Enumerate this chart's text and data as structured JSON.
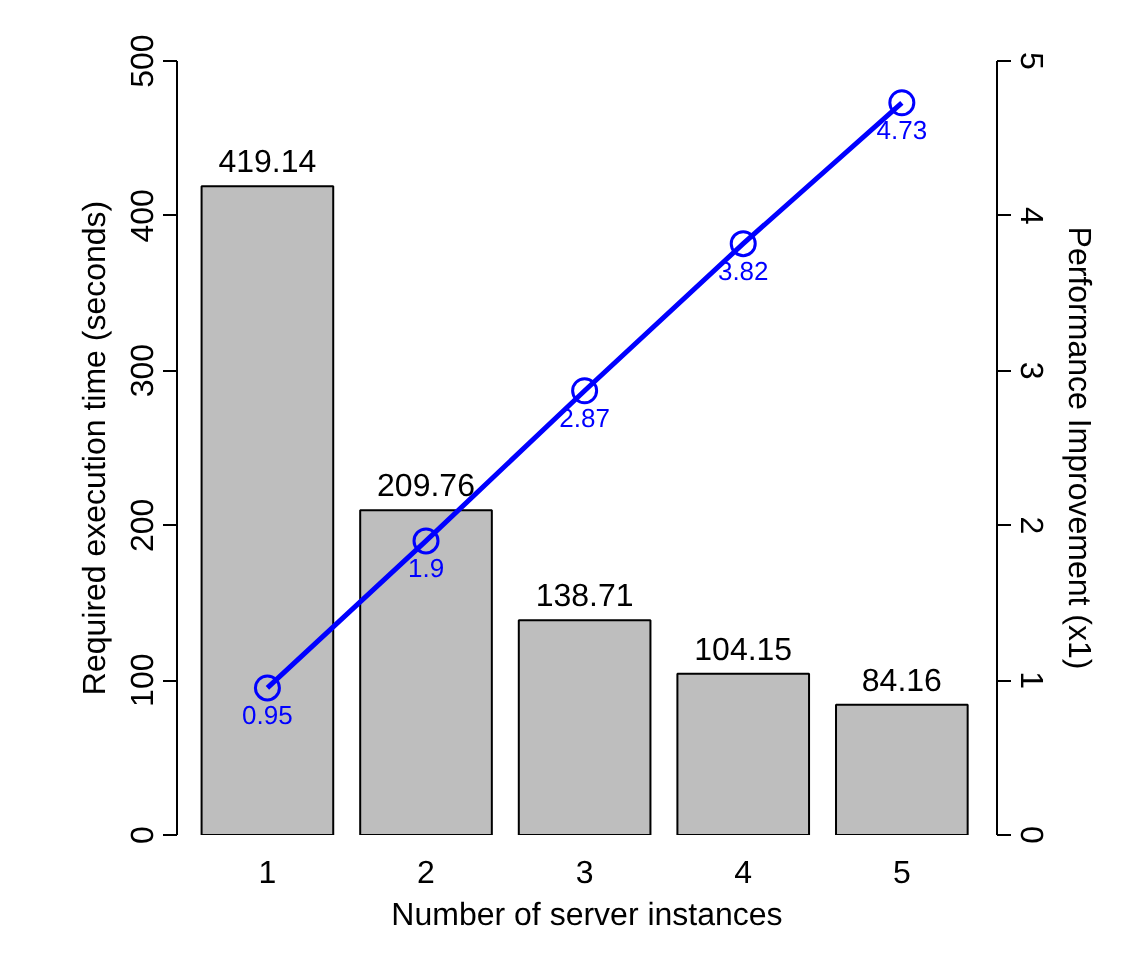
{
  "chart_data": {
    "type": "bar",
    "categories": [
      "1",
      "2",
      "3",
      "4",
      "5"
    ],
    "xlabel": "Number of server instances",
    "ylabel": "Required execution time (seconds)",
    "y2label": "Performance Improvement (x1)",
    "ylim": [
      0,
      500
    ],
    "yticks": [
      0,
      100,
      200,
      300,
      400,
      500
    ],
    "y2lim": [
      0,
      5
    ],
    "y2ticks": [
      0,
      1,
      2,
      3,
      4,
      5
    ],
    "data_labels": true,
    "marker": "circle",
    "series": [
      {
        "color": "#bebebe",
        "values": [
          419.14,
          209.76,
          138.71,
          104.15,
          84.16
        ]
      },
      {
        "type": "line",
        "axis": "y2",
        "color": "#0000ff",
        "values": [
          0.95,
          1.9,
          2.87,
          3.82,
          4.73
        ]
      }
    ]
  }
}
